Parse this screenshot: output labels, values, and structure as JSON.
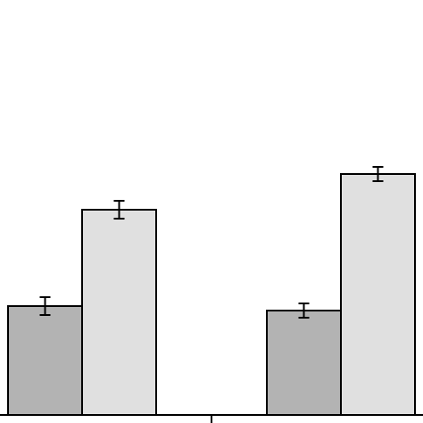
{
  "chart_data": {
    "type": "bar",
    "categories": [
      "",
      ""
    ],
    "series": [
      {
        "values": [
          122,
          117
        ],
        "errors": [
          10,
          8
        ],
        "color": "#b3b3b3"
      },
      {
        "values": [
          230,
          270
        ],
        "errors": [
          10,
          8
        ],
        "color": "#e0e0e0"
      }
    ],
    "ylim": [
      0,
      465
    ],
    "grid": false,
    "error_bars": true
  }
}
